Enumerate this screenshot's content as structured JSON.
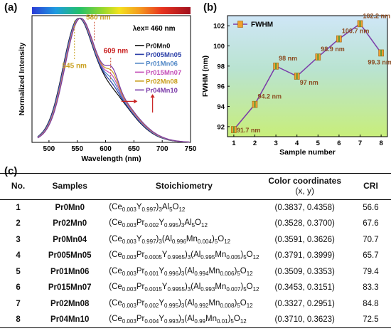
{
  "panels": {
    "a": "(a)",
    "b": "(b)",
    "c": "(c)"
  },
  "chart_data": [
    {
      "type": "line",
      "xlabel": "Wavelength (nm)",
      "ylabel": "Normalized Intensity",
      "xlim": [
        470,
        750
      ],
      "ylim": [
        0,
        1.02
      ],
      "xticks": [
        500,
        550,
        600,
        650,
        700,
        750
      ],
      "annotations": {
        "peak1": "545 nm",
        "peak2": "580 nm",
        "peak3": "609 nm",
        "excitation": "λex= 460 nm"
      },
      "series": [
        {
          "name": "Pr0Mn0",
          "color": "#111111",
          "shift": 0
        },
        {
          "name": "Pr005Mn05",
          "color": "#2b3fa8",
          "shift": 2
        },
        {
          "name": "Pr01Mn06",
          "color": "#4f86c6",
          "shift": 4
        },
        {
          "name": "Pr015Mn07",
          "color": "#c44fb8",
          "shift": 6
        },
        {
          "name": "Pr02Mn08",
          "color": "#c9a020",
          "shift": 8
        },
        {
          "name": "Pr04Mn10",
          "color": "#7a3aa8",
          "shift": 10
        }
      ]
    },
    {
      "type": "line",
      "xlabel": "Sample number",
      "ylabel": "FWHM (nm)",
      "xlim": [
        0.7,
        8.3
      ],
      "ylim": [
        91,
        103
      ],
      "xticks": [
        1,
        2,
        3,
        4,
        5,
        6,
        7,
        8
      ],
      "yticks": [
        92,
        94,
        96,
        98,
        100,
        102
      ],
      "legend": "FWHM",
      "legend_position": "top-left",
      "series": [
        {
          "name": "FWHM",
          "x": [
            1,
            2,
            3,
            4,
            5,
            6,
            7,
            8
          ],
          "y": [
            91.7,
            94.2,
            98,
            97,
            98.9,
            100.7,
            102.2,
            99.3
          ],
          "labels": [
            "91.7 nm",
            "94.2 nm",
            "98 nm",
            "97 nm",
            "98.9 nm",
            "100.7 nm",
            "102.2 nm",
            "99.3 nm"
          ]
        }
      ]
    }
  ],
  "table": {
    "headers": {
      "no": "No.",
      "samples": "Samples",
      "stoich": "Stoichiometry",
      "cc": "Color coordinates",
      "cc_sub": "(x, y)",
      "cri": "CRI"
    },
    "rows": [
      {
        "no": "1",
        "sample": "Pr0Mn0",
        "stoich": "(Ce_{0.003}Y_{0.997})_{3}Al_{5}O_{12}",
        "cc": "(0.3837, 0.4358)",
        "cri": "56.6"
      },
      {
        "no": "2",
        "sample": "Pr02Mn0",
        "stoich": "(Ce_{0.003}Pr_{0.002}Y_{0.995})_{3}Al_{5}O_{12}",
        "cc": "(0.3528, 0.3700)",
        "cri": "67.6"
      },
      {
        "no": "3",
        "sample": "Pr0Mn04",
        "stoich": "(Ce_{0.003}Y_{0.997})_{3}(Al_{0.996}Mn_{0.004})_{5}O_{12}",
        "cc": "(0.3591, 0.3626)",
        "cri": "70.7"
      },
      {
        "no": "4",
        "sample": "Pr005Mn05",
        "stoich": "(Ce_{0.003}Pr_{0.0005}Y_{0.9965})_{3}(Al_{0.995}Mn_{0.005})_{5}O_{12}",
        "cc": "(0.3791, 0.3999)",
        "cri": "65.7"
      },
      {
        "no": "5",
        "sample": "Pr01Mn06",
        "stoich": "(Ce_{0.003}Pr_{0.001}Y_{0.996})_{3}(Al_{0.994}Mn_{0.006})_{5}O_{12}",
        "cc": "(0.3509, 0.3353)",
        "cri": "79.4"
      },
      {
        "no": "6",
        "sample": "Pr015Mn07",
        "stoich": "(Ce_{0.003}Pr_{0.0015}Y_{0.9955})_{3}(Al_{0.993}Mn_{0.007})_{5}O_{12}",
        "cc": "(0.3453, 0.3151)",
        "cri": "83.3"
      },
      {
        "no": "7",
        "sample": "Pr02Mn08",
        "stoich": "(Ce_{0.003}Pr_{0.002}Y_{0.995})_{3}(Al_{0.992}Mn_{0.008})_{5}O_{12}",
        "cc": "(0.3327, 0.2951)",
        "cri": "84.8"
      },
      {
        "no": "8",
        "sample": "Pr04Mn10",
        "stoich": "(Ce_{0.003}Pr_{0.004}Y_{0.993})_{3}(Al_{0.99}Mn_{0.01})_{5}O_{12}",
        "cc": "(0.3710, 0.3623)",
        "cri": "72.5"
      }
    ]
  }
}
